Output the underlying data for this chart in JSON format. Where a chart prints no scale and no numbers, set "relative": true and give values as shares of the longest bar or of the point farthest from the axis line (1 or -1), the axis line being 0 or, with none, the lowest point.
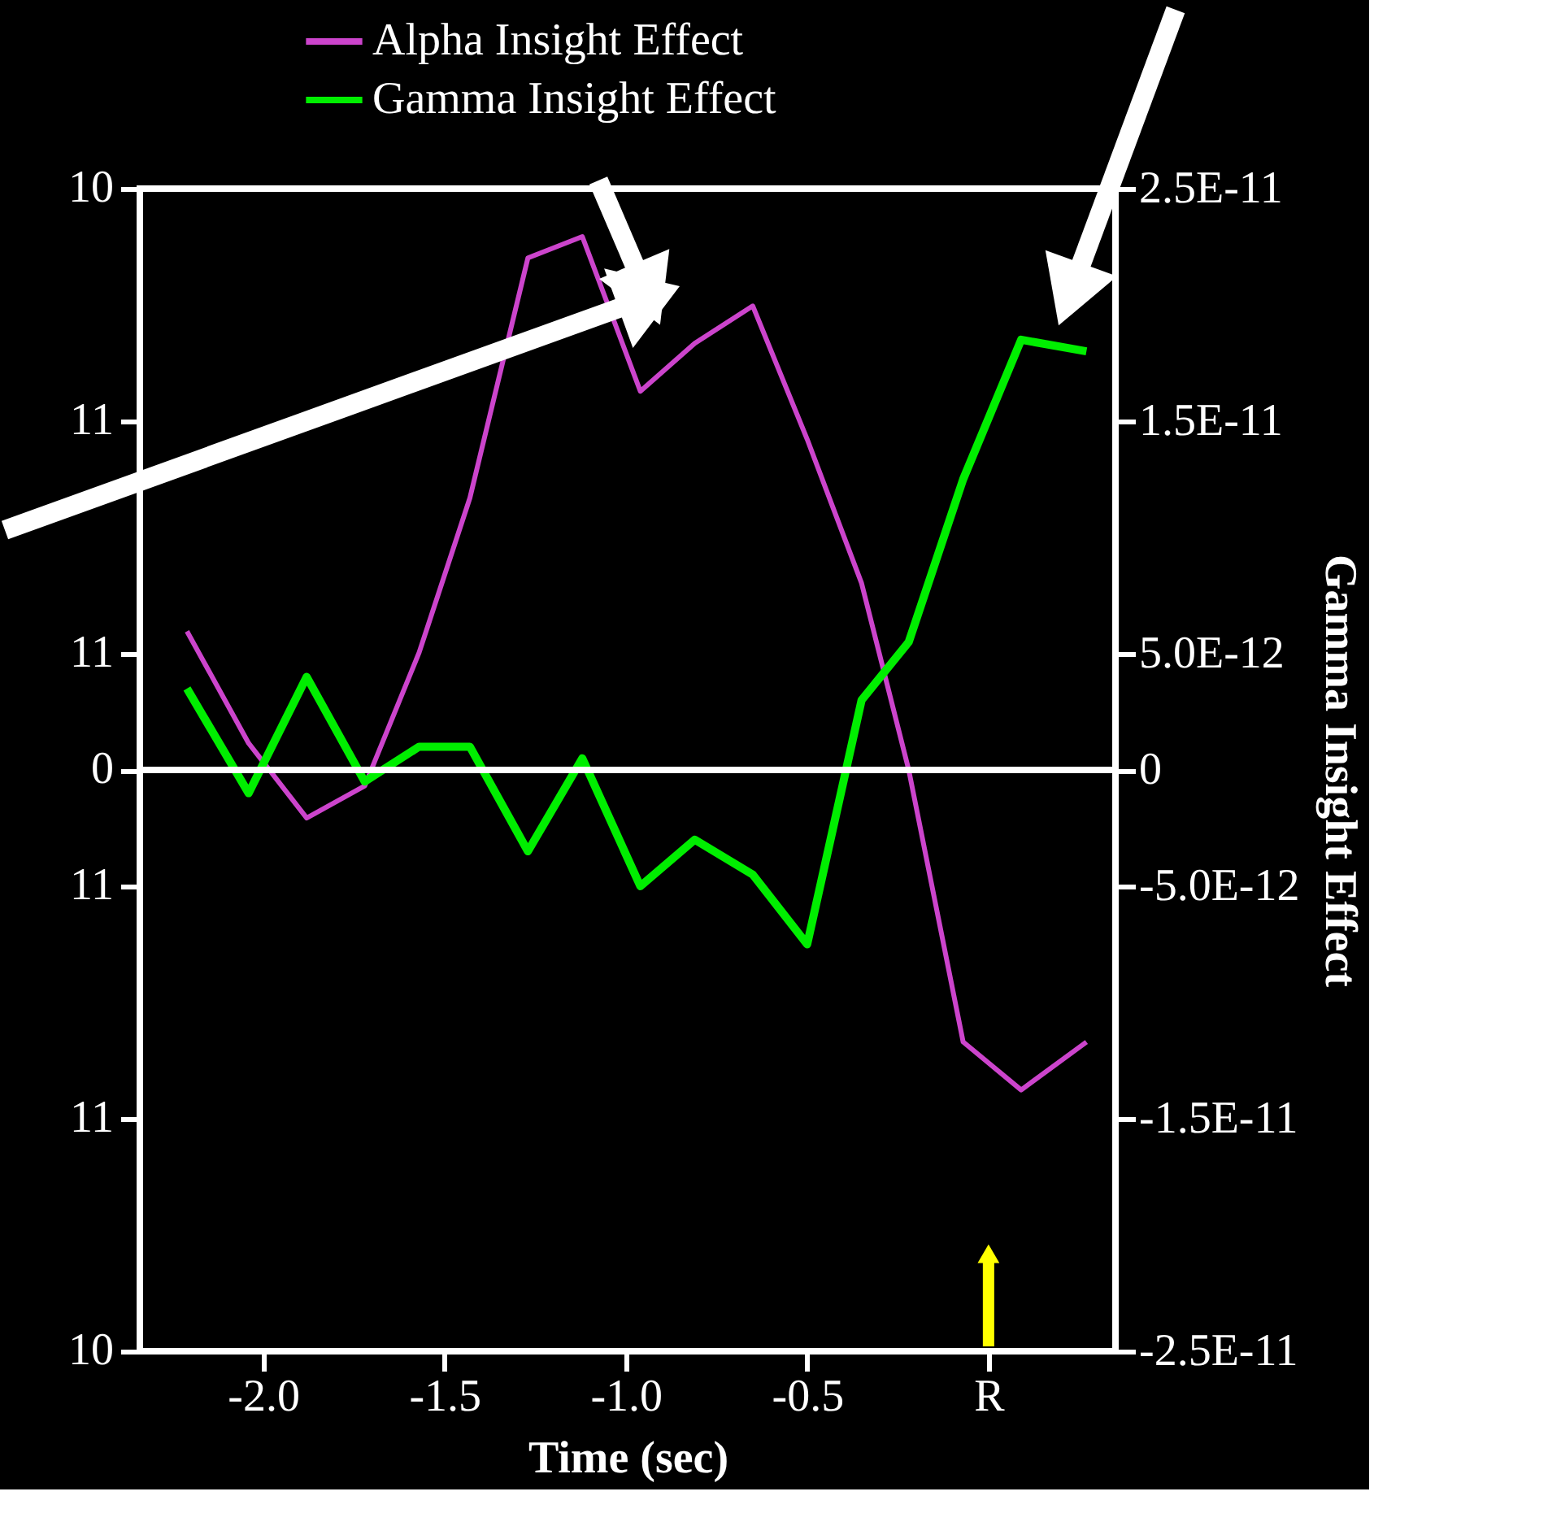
{
  "chart_data": {
    "type": "line",
    "xlabel": "Time (sec)",
    "y2label": "Gamma Insight Effect",
    "relative": true,
    "x": [
      -2.21,
      -2.04,
      -1.88,
      -1.72,
      -1.57,
      -1.43,
      -1.27,
      -1.12,
      -0.96,
      -0.81,
      -0.65,
      -0.5,
      -0.35,
      -0.22,
      -0.07,
      0.09,
      0.27
    ],
    "series": [
      {
        "name": "Alpha Insight Effect",
        "color": "#cc44cc",
        "values": [
          0.26,
          0.05,
          -0.09,
          -0.03,
          0.22,
          0.51,
          0.96,
          1,
          0.71,
          0.8,
          0.87,
          0.62,
          0.35,
          0,
          -0.51,
          -0.6,
          -0.51
        ]
      },
      {
        "name": "Gamma Insight Effect",
        "color": "#00ee00",
        "axis": "y2",
        "values": [
          3.5e-12,
          -1e-12,
          4e-12,
          -5e-13,
          1e-12,
          1e-12,
          -3.5e-12,
          5e-13,
          -5e-12,
          -3e-12,
          -4.5e-12,
          -7.5e-12,
          3e-12,
          5.5e-12,
          1.25e-11,
          1.85e-11,
          1.8e-11
        ]
      }
    ],
    "xlim": [
      -2.34,
      0.35
    ],
    "xticks": [
      {
        "value": -2.0,
        "label": "-2.0"
      },
      -1.5,
      {
        "value": -1.0,
        "label": "-1.0"
      },
      -0.5,
      {
        "value": 0,
        "label": "R"
      }
    ],
    "y2lim": [
      -2.5e-11,
      2.5e-11
    ],
    "y2ticks": [
      {
        "value": 2.5e-11,
        "label": "2.5E-11"
      },
      {
        "value": 1.5e-11,
        "label": "1.5E-11"
      },
      {
        "value": 5e-12,
        "label": "5.0E-12"
      },
      0,
      {
        "value": -5e-12,
        "label": "-5.0E-12"
      },
      {
        "value": -1.5e-11,
        "label": "-1.5E-11"
      },
      {
        "value": -2.5e-11,
        "label": "-2.5E-11"
      }
    ],
    "annotations": [
      "10",
      "11",
      "11",
      "0",
      "11",
      "11",
      "10"
    ],
    "ref_lines": [
      {
        "axis": "y2",
        "value": 0,
        "color": "#ffffff"
      }
    ],
    "legend": "top left",
    "grid": false
  }
}
